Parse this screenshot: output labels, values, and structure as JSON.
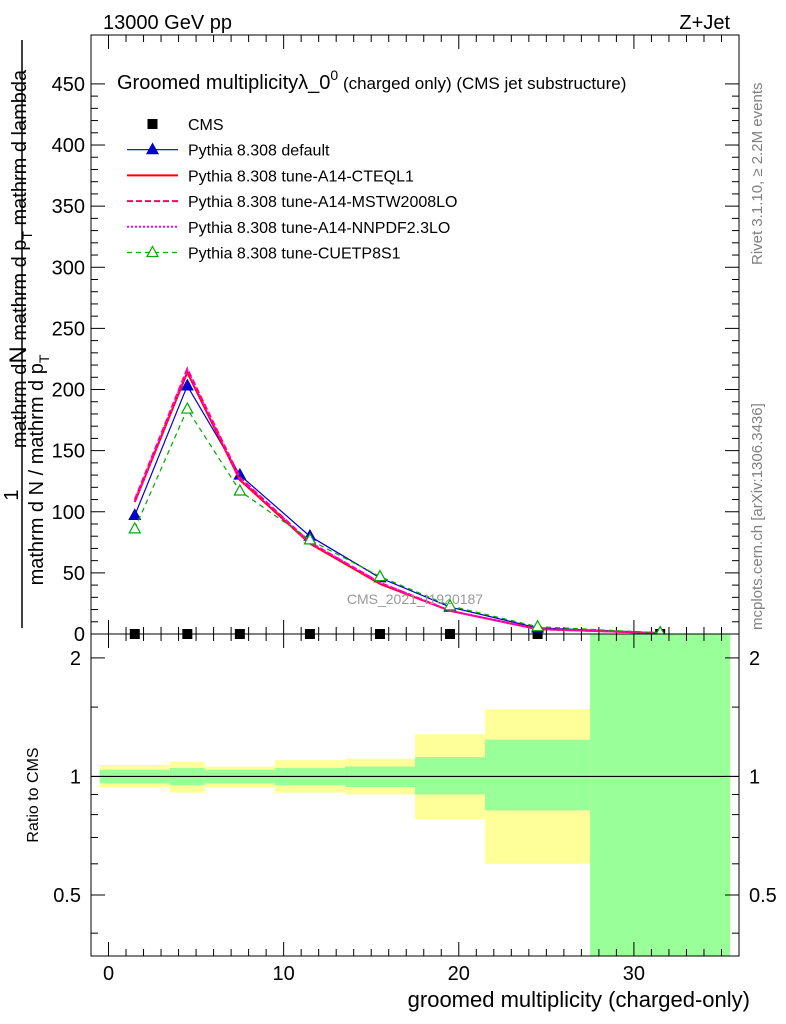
{
  "header": {
    "energy_label": "13000 GeV pp",
    "process_label": "Z+Jet"
  },
  "side_labels": {
    "rivet": "Rivet 3.1.10, ≥ 2.2M events",
    "mcplots": "mcplots.cern.ch [arXiv:1306.3436]"
  },
  "chart_data": [
    {
      "type": "line",
      "title": "Groomed multiplicityλ_0",
      "title_sup": "0",
      "title_suffix": " (charged only) (CMS jet substructure)",
      "ylabel_top": "mathrm d",
      "ylabel_top_N": "N",
      "ylabel_one": "1",
      "ylabel_main": "mathrm d N / mathrm d p",
      "ylabel_main_sub": "T",
      "ylabel_tail1": " mathrm d p",
      "ylabel_tail1_sub": "T",
      "ylabel_tail2": " mathrm d lambda",
      "watermark": "CMS_2021_I1920187",
      "xlim": [
        -1,
        36
      ],
      "ylim": [
        0,
        490
      ],
      "yticks": [
        0,
        50,
        100,
        150,
        200,
        250,
        300,
        350,
        400,
        450
      ],
      "x": [
        1.5,
        4.5,
        7.5,
        11.5,
        15.5,
        19.5,
        24.5,
        31.5
      ],
      "series": [
        {
          "name": "CMS",
          "style": "data",
          "color": "#000000",
          "values": [
            0,
            0,
            0,
            0,
            0,
            0,
            0,
            0
          ]
        },
        {
          "name": "Pythia 8.308 default",
          "style": "tri-filled",
          "color": "#0000cc",
          "values": [
            97,
            203,
            130,
            80,
            46,
            22,
            5,
            1
          ]
        },
        {
          "name": "Pythia 8.308 tune-A14-CTEQL1",
          "style": "solid",
          "color": "#ff0000",
          "values": [
            108,
            214,
            126,
            74,
            41,
            19,
            4,
            0.8
          ]
        },
        {
          "name": "Pythia 8.308 tune-A14-MSTW2008LO",
          "style": "dashed",
          "color": "#ff0066",
          "values": [
            110,
            217,
            128,
            75,
            42,
            19,
            4,
            0.8
          ]
        },
        {
          "name": "Pythia 8.308 tune-A14-NNPDF2.3LO",
          "style": "dotted",
          "color": "#ff00ff",
          "values": [
            109,
            216,
            127,
            75,
            42,
            19,
            4,
            0.8
          ]
        },
        {
          "name": "Pythia 8.308 tune-CUETP8S1",
          "style": "tri-open-dashed",
          "color": "#00aa00",
          "values": [
            86,
            184,
            117,
            77,
            47,
            23,
            6,
            1
          ]
        }
      ]
    },
    {
      "type": "area",
      "ylabel": "Ratio to CMS",
      "xlabel": "groomed multiplicity (charged-only)",
      "xlim": [
        -1,
        36
      ],
      "ylim": [
        0.35,
        2.3
      ],
      "ylog": true,
      "yticks": [
        0.5,
        1,
        2
      ],
      "ytick_labels": [
        "0.5",
        "1",
        "2"
      ],
      "xticks": [
        0,
        10,
        20,
        30
      ],
      "xtick_labels": [
        "0",
        "10",
        "20",
        "30"
      ],
      "bins": [
        {
          "lo": -0.5,
          "hi": 3.5,
          "stat_lo": 0.96,
          "stat_hi": 1.04,
          "tot_lo": 0.94,
          "tot_hi": 1.07
        },
        {
          "lo": 3.5,
          "hi": 5.5,
          "stat_lo": 0.95,
          "stat_hi": 1.05,
          "tot_lo": 0.91,
          "tot_hi": 1.09
        },
        {
          "lo": 5.5,
          "hi": 9.5,
          "stat_lo": 0.96,
          "stat_hi": 1.04,
          "tot_lo": 0.94,
          "tot_hi": 1.06
        },
        {
          "lo": 9.5,
          "hi": 13.5,
          "stat_lo": 0.95,
          "stat_hi": 1.05,
          "tot_lo": 0.91,
          "tot_hi": 1.1
        },
        {
          "lo": 13.5,
          "hi": 17.5,
          "stat_lo": 0.94,
          "stat_hi": 1.06,
          "tot_lo": 0.9,
          "tot_hi": 1.11
        },
        {
          "lo": 17.5,
          "hi": 21.5,
          "stat_lo": 0.9,
          "stat_hi": 1.12,
          "tot_lo": 0.78,
          "tot_hi": 1.28
        },
        {
          "lo": 21.5,
          "hi": 27.5,
          "stat_lo": 0.82,
          "stat_hi": 1.24,
          "tot_lo": 0.6,
          "tot_hi": 1.48
        },
        {
          "lo": 27.5,
          "hi": 35.5,
          "stat_lo": 0.33,
          "stat_hi": 2.35,
          "tot_lo": 0.33,
          "tot_hi": 2.35
        }
      ],
      "colors": {
        "stat": "#99ff99",
        "total": "#ffff99",
        "unity": "#000000"
      }
    }
  ]
}
